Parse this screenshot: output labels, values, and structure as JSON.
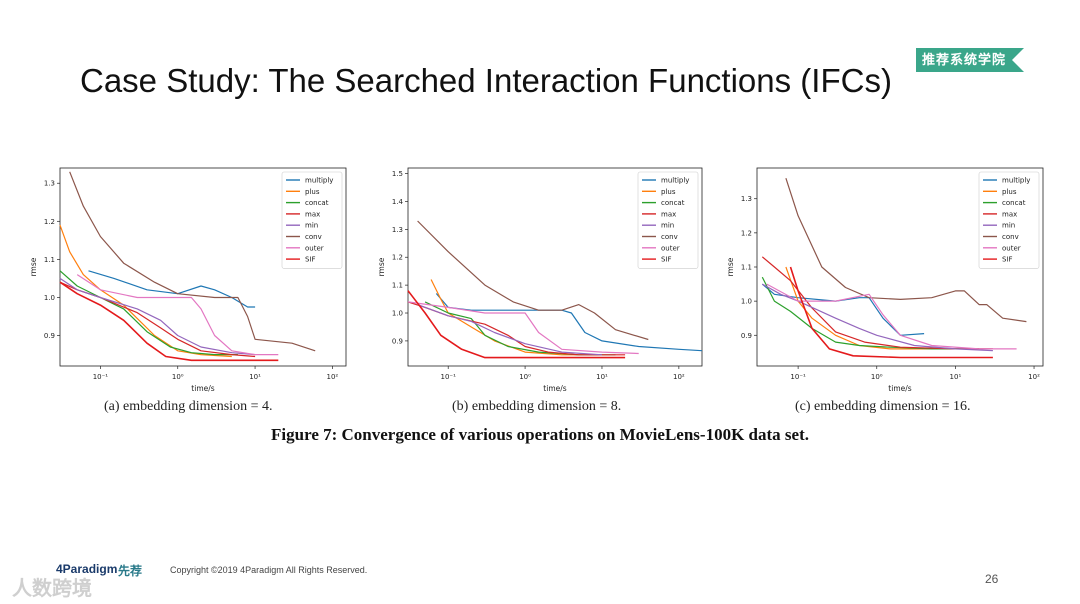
{
  "slide": {
    "title": "Case Study: The Searched Interaction Functions (IFCs)",
    "badge": "推荐系统学院",
    "figure_caption": "Figure 7: Convergence of various operations on MovieLens-100K data set.",
    "copyright": "Copyright ©2019 4Paradigm All Rights Reserved.",
    "page_number": "26",
    "logo_left": "4Paradigm",
    "logo_right": "先荐",
    "watermark": "人数跨境"
  },
  "colors": {
    "multiply": "#1f77b4",
    "plus": "#ff7f0e",
    "concat": "#2ca02c",
    "max": "#d62728",
    "min": "#9467bd",
    "conv": "#8c564b",
    "outer": "#e377c2",
    "SIF": "#e41a1c",
    "badge": "#3aa68a"
  },
  "chart_data": [
    {
      "type": "line",
      "caption": "(a)  embedding dimension = 4.",
      "xlabel": "time/s",
      "ylabel": "rmse",
      "xscale": "log",
      "xlim": [
        0.03,
        150
      ],
      "ylim": [
        0.82,
        1.34
      ],
      "xticks": [
        {
          "v": 0.1,
          "label": "10⁻¹"
        },
        {
          "v": 1,
          "label": "10⁰"
        },
        {
          "v": 10,
          "label": "10¹"
        },
        {
          "v": 100,
          "label": "10²"
        }
      ],
      "yticks": [
        0.9,
        1.0,
        1.1,
        1.2,
        1.3
      ],
      "legend_position": "top-right",
      "series": [
        {
          "name": "multiply",
          "x": [
            0.07,
            0.15,
            0.4,
            1,
            2,
            3,
            5,
            8,
            10
          ],
          "y": [
            1.07,
            1.05,
            1.02,
            1.01,
            1.03,
            1.02,
            1.0,
            0.975,
            0.975
          ]
        },
        {
          "name": "plus",
          "x": [
            0.03,
            0.04,
            0.06,
            0.1,
            0.2,
            0.5,
            1,
            2,
            5
          ],
          "y": [
            1.19,
            1.12,
            1.06,
            1.02,
            0.98,
            0.9,
            0.86,
            0.85,
            0.845
          ]
        },
        {
          "name": "concat",
          "x": [
            0.03,
            0.05,
            0.1,
            0.2,
            0.4,
            0.8,
            1.5,
            3,
            6
          ],
          "y": [
            1.07,
            1.03,
            1.0,
            0.97,
            0.91,
            0.87,
            0.855,
            0.85,
            0.85
          ]
        },
        {
          "name": "max",
          "x": [
            0.03,
            0.05,
            0.1,
            0.3,
            0.6,
            1,
            2,
            5,
            10
          ],
          "y": [
            1.04,
            1.02,
            1.0,
            0.96,
            0.92,
            0.89,
            0.86,
            0.85,
            0.845
          ]
        },
        {
          "name": "min",
          "x": [
            0.03,
            0.05,
            0.1,
            0.3,
            0.6,
            1,
            2,
            5,
            10
          ],
          "y": [
            1.05,
            1.02,
            1.0,
            0.97,
            0.94,
            0.9,
            0.87,
            0.855,
            0.85
          ]
        },
        {
          "name": "conv",
          "x": [
            0.04,
            0.06,
            0.1,
            0.2,
            0.5,
            1,
            3,
            6,
            8,
            10,
            30,
            60
          ],
          "y": [
            1.33,
            1.24,
            1.16,
            1.09,
            1.04,
            1.01,
            1.0,
            1.0,
            0.95,
            0.89,
            0.88,
            0.86
          ]
        },
        {
          "name": "outer",
          "x": [
            0.05,
            0.1,
            0.3,
            0.7,
            1.5,
            2,
            3,
            5,
            10,
            20
          ],
          "y": [
            1.06,
            1.02,
            1.0,
            1.0,
            1.0,
            0.97,
            0.9,
            0.86,
            0.85,
            0.85
          ]
        },
        {
          "name": "SIF",
          "x": [
            0.03,
            0.05,
            0.1,
            0.2,
            0.4,
            0.7,
            1.5,
            5,
            20
          ],
          "y": [
            1.04,
            1.01,
            0.98,
            0.94,
            0.88,
            0.845,
            0.835,
            0.835,
            0.835
          ]
        }
      ]
    },
    {
      "type": "line",
      "caption": "(b)  embedding dimension = 8.",
      "xlabel": "time/s",
      "ylabel": "rmse",
      "xscale": "log",
      "xlim": [
        0.03,
        200
      ],
      "ylim": [
        0.81,
        1.52
      ],
      "xticks": [
        {
          "v": 0.1,
          "label": "10⁻¹"
        },
        {
          "v": 1,
          "label": "10⁰"
        },
        {
          "v": 10,
          "label": "10¹"
        },
        {
          "v": 100,
          "label": "10²"
        }
      ],
      "yticks": [
        0.9,
        1.0,
        1.1,
        1.2,
        1.3,
        1.4,
        1.5
      ],
      "legend_position": "top-right",
      "series": [
        {
          "name": "multiply",
          "x": [
            0.07,
            0.1,
            0.2,
            0.5,
            1,
            3,
            4,
            6,
            10,
            30,
            100,
            200
          ],
          "y": [
            1.07,
            1.02,
            1.01,
            1.01,
            1.01,
            1.01,
            1.0,
            0.93,
            0.9,
            0.88,
            0.87,
            0.865
          ]
        },
        {
          "name": "plus",
          "x": [
            0.06,
            0.08,
            0.1,
            0.2,
            0.4,
            1,
            3,
            10
          ],
          "y": [
            1.12,
            1.05,
            1.0,
            0.95,
            0.9,
            0.86,
            0.85,
            0.85
          ]
        },
        {
          "name": "concat",
          "x": [
            0.05,
            0.1,
            0.2,
            0.3,
            0.6,
            1.5,
            5,
            15
          ],
          "y": [
            1.04,
            1.0,
            0.98,
            0.92,
            0.88,
            0.86,
            0.85,
            0.85
          ]
        },
        {
          "name": "max",
          "x": [
            0.03,
            0.05,
            0.1,
            0.3,
            0.6,
            1,
            2,
            5,
            10,
            20
          ],
          "y": [
            1.04,
            1.02,
            0.99,
            0.96,
            0.92,
            0.88,
            0.86,
            0.85,
            0.85,
            0.85
          ]
        },
        {
          "name": "min",
          "x": [
            0.04,
            0.1,
            0.2,
            0.4,
            1,
            3,
            10
          ],
          "y": [
            1.03,
            0.99,
            0.97,
            0.93,
            0.89,
            0.86,
            0.85
          ]
        },
        {
          "name": "conv",
          "x": [
            0.04,
            0.1,
            0.3,
            0.7,
            1.5,
            3,
            5,
            8,
            15,
            40
          ],
          "y": [
            1.33,
            1.22,
            1.1,
            1.04,
            1.01,
            1.01,
            1.03,
            1.0,
            0.94,
            0.905
          ]
        },
        {
          "name": "outer",
          "x": [
            0.03,
            0.1,
            0.3,
            0.7,
            1,
            1.5,
            3,
            10,
            30
          ],
          "y": [
            1.04,
            1.02,
            1.0,
            1.0,
            1.0,
            0.93,
            0.87,
            0.86,
            0.855
          ]
        },
        {
          "name": "SIF",
          "x": [
            0.03,
            0.05,
            0.08,
            0.15,
            0.3,
            1,
            5,
            20
          ],
          "y": [
            1.08,
            1.0,
            0.92,
            0.87,
            0.84,
            0.84,
            0.84,
            0.84
          ]
        }
      ]
    },
    {
      "type": "line",
      "caption": "(c)  embedding dimension = 16.",
      "xlabel": "time/s",
      "ylabel": "rmse",
      "xscale": "log",
      "xlim": [
        0.03,
        130
      ],
      "ylim": [
        0.81,
        1.39
      ],
      "xticks": [
        {
          "v": 0.1,
          "label": "10⁻¹"
        },
        {
          "v": 1,
          "label": "10⁰"
        },
        {
          "v": 10,
          "label": "10¹"
        },
        {
          "v": 100,
          "label": "10²"
        }
      ],
      "yticks": [
        0.9,
        1.0,
        1.1,
        1.2,
        1.3
      ],
      "legend_position": "top-right",
      "series": [
        {
          "name": "multiply",
          "x": [
            0.035,
            0.05,
            0.1,
            0.3,
            0.6,
            0.8,
            1.2,
            2,
            4
          ],
          "y": [
            1.05,
            1.02,
            1.01,
            1.0,
            1.01,
            1.01,
            0.95,
            0.9,
            0.905
          ]
        },
        {
          "name": "plus",
          "x": [
            0.07,
            0.1,
            0.15,
            0.3,
            0.6,
            1.5,
            5,
            20
          ],
          "y": [
            1.1,
            1.0,
            0.95,
            0.9,
            0.87,
            0.86,
            0.86,
            0.86
          ]
        },
        {
          "name": "concat",
          "x": [
            0.035,
            0.05,
            0.08,
            0.15,
            0.3,
            0.6,
            1.5,
            5,
            20
          ],
          "y": [
            1.07,
            1.0,
            0.97,
            0.92,
            0.88,
            0.87,
            0.865,
            0.86,
            0.86
          ]
        },
        {
          "name": "max",
          "x": [
            0.035,
            0.05,
            0.08,
            0.15,
            0.3,
            0.7,
            2,
            10,
            30
          ],
          "y": [
            1.13,
            1.1,
            1.06,
            0.98,
            0.91,
            0.88,
            0.865,
            0.86,
            0.86
          ]
        },
        {
          "name": "min",
          "x": [
            0.035,
            0.06,
            0.1,
            0.3,
            0.6,
            1,
            3,
            10,
            30
          ],
          "y": [
            1.05,
            1.02,
            1.0,
            0.95,
            0.92,
            0.9,
            0.87,
            0.86,
            0.855
          ]
        },
        {
          "name": "conv",
          "x": [
            0.07,
            0.1,
            0.2,
            0.4,
            0.8,
            2,
            5,
            10,
            13,
            20,
            25,
            40,
            80
          ],
          "y": [
            1.36,
            1.25,
            1.1,
            1.04,
            1.01,
            1.005,
            1.01,
            1.03,
            1.03,
            0.99,
            0.99,
            0.95,
            0.94
          ]
        },
        {
          "name": "outer",
          "x": [
            0.04,
            0.1,
            0.3,
            0.8,
            1.2,
            2,
            5,
            20,
            60
          ],
          "y": [
            1.05,
            1.0,
            1.0,
            1.02,
            0.96,
            0.9,
            0.87,
            0.86,
            0.86
          ]
        },
        {
          "name": "SIF",
          "x": [
            0.08,
            0.1,
            0.15,
            0.25,
            0.5,
            2,
            10,
            30
          ],
          "y": [
            1.1,
            1.03,
            0.92,
            0.86,
            0.84,
            0.835,
            0.835,
            0.835
          ]
        }
      ]
    }
  ]
}
